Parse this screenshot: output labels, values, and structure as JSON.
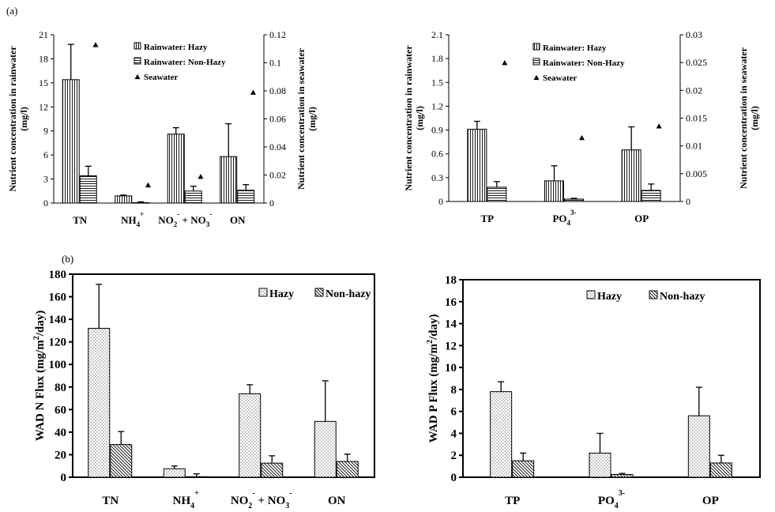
{
  "colors": {
    "axis": "#000000",
    "bar_fill": "#ffffff",
    "marker": "#000000"
  },
  "panels": {
    "a": "(a)",
    "b": "(b)"
  },
  "chart_data": [
    {
      "id": "a-n",
      "type": "bar",
      "categories": [
        "TN",
        "NH4+",
        "NO2- + NO3-",
        "ON"
      ],
      "category_labels": [
        {
          "base": "TN"
        },
        {
          "base": "NH",
          "sub": "4",
          "sup": "+"
        },
        {
          "base": "NO",
          "sub": "2",
          "sup": "-",
          "mid": " + NO",
          "sub2": "3",
          "sup2": "-"
        },
        {
          "base": "ON"
        }
      ],
      "ylabel": [
        "Nutrient concentration in rainwater",
        "(mg/l)"
      ],
      "y2label": [
        "Nutrient concentration in seawater",
        "(mg/l)"
      ],
      "ylim": [
        0,
        21
      ],
      "yticks": [
        "0",
        "3",
        "6",
        "9",
        "12",
        "15",
        "18",
        "21"
      ],
      "y2lim": [
        0,
        0.12
      ],
      "y2ticks": [
        "0",
        "0.02",
        "0.04",
        "0.06",
        "0.08",
        "0.1",
        "0.12"
      ],
      "legend_position": "top-right",
      "series": [
        {
          "name": "Rainwater: Hazy",
          "pattern": "vlines",
          "values": [
            15.4,
            0.9,
            8.6,
            5.8
          ],
          "errors": [
            4.4,
            0.1,
            0.8,
            4.1
          ]
        },
        {
          "name": "Rainwater: Non-Hazy",
          "pattern": "hlines",
          "values": [
            3.4,
            0.05,
            1.5,
            1.6
          ],
          "errors": [
            1.2,
            0.1,
            0.6,
            0.7
          ]
        },
        {
          "name": "Seawater",
          "pattern": "triangle",
          "axis": "right",
          "values": [
            0.113,
            0.013,
            0.019,
            0.079
          ]
        }
      ]
    },
    {
      "id": "a-p",
      "type": "bar",
      "categories": [
        "TP",
        "PO43-",
        "OP"
      ],
      "category_labels": [
        {
          "base": "TP"
        },
        {
          "base": "PO",
          "sub": "4",
          "sup": "3-"
        },
        {
          "base": "OP"
        }
      ],
      "ylabel": [
        "Nutrient concentration in rainwater",
        "(mg/l)"
      ],
      "y2label": [
        "Nutrient concentration in seawater",
        "(mg/l)"
      ],
      "ylim": [
        0,
        2.1
      ],
      "yticks": [
        "0",
        "0.3",
        "0.6",
        "0.9",
        "1.2",
        "1.5",
        "1.8",
        "2.1"
      ],
      "y2lim": [
        0,
        0.03
      ],
      "y2ticks": [
        "0",
        "0.005",
        "0.01",
        "0.015",
        "0.02",
        "0.025",
        "0.03"
      ],
      "legend_position": "top-right",
      "series": [
        {
          "name": "Rainwater: Hazy",
          "pattern": "vlines",
          "values": [
            0.91,
            0.26,
            0.65
          ],
          "errors": [
            0.1,
            0.19,
            0.29
          ]
        },
        {
          "name": "Rainwater: Non-Hazy",
          "pattern": "hlines",
          "values": [
            0.18,
            0.03,
            0.14
          ],
          "errors": [
            0.07,
            0.01,
            0.08
          ]
        },
        {
          "name": "Seawater",
          "pattern": "triangle",
          "axis": "right",
          "values": [
            0.025,
            0.0115,
            0.0136
          ]
        }
      ]
    },
    {
      "id": "b-n",
      "type": "bar",
      "categories": [
        "TN",
        "NH4+",
        "NO2- + NO3-",
        "ON"
      ],
      "category_labels": [
        {
          "base": "TN"
        },
        {
          "base": "NH",
          "sub": "4",
          "sup": "+"
        },
        {
          "base": "NO",
          "sub": "2",
          "sup": "-",
          "mid": " + NO",
          "sub2": "3",
          "sup2": "-"
        },
        {
          "base": "ON"
        }
      ],
      "ylabel_parts": {
        "pre": "WAD N Flux (mg/m",
        "sup": "2",
        "post": "/day)"
      },
      "ylim": [
        0,
        180
      ],
      "yticks": [
        "0",
        "20",
        "40",
        "60",
        "80",
        "100",
        "120",
        "140",
        "160",
        "180"
      ],
      "legend_position": "top-right",
      "series": [
        {
          "name": "Hazy",
          "pattern": "dots",
          "values": [
            132,
            7.5,
            74,
            49.5
          ],
          "errors": [
            39,
            2.5,
            8,
            36
          ]
        },
        {
          "name": "Non-hazy",
          "pattern": "diag",
          "values": [
            29,
            0.5,
            12.5,
            14
          ],
          "errors": [
            11.5,
            2.5,
            6.5,
            6.5
          ]
        }
      ]
    },
    {
      "id": "b-p",
      "type": "bar",
      "categories": [
        "TP",
        "PO43-",
        "OP"
      ],
      "category_labels": [
        {
          "base": "TP"
        },
        {
          "base": "PO",
          "sub": "4",
          "sup": "3-"
        },
        {
          "base": "OP"
        }
      ],
      "ylabel_parts": {
        "pre": "WAD P Flux (mg/m",
        "sup": "2",
        "post": "/day)"
      },
      "ylim": [
        0,
        18
      ],
      "yticks": [
        "0",
        "2",
        "4",
        "6",
        "8",
        "10",
        "12",
        "14",
        "16",
        "18"
      ],
      "legend_position": "top-right",
      "series": [
        {
          "name": "Hazy",
          "pattern": "dots",
          "values": [
            7.8,
            2.2,
            5.6
          ],
          "errors": [
            0.9,
            1.8,
            2.6
          ]
        },
        {
          "name": "Non-hazy",
          "pattern": "diag",
          "values": [
            1.5,
            0.25,
            1.3
          ],
          "errors": [
            0.7,
            0.1,
            0.7
          ]
        }
      ]
    }
  ]
}
